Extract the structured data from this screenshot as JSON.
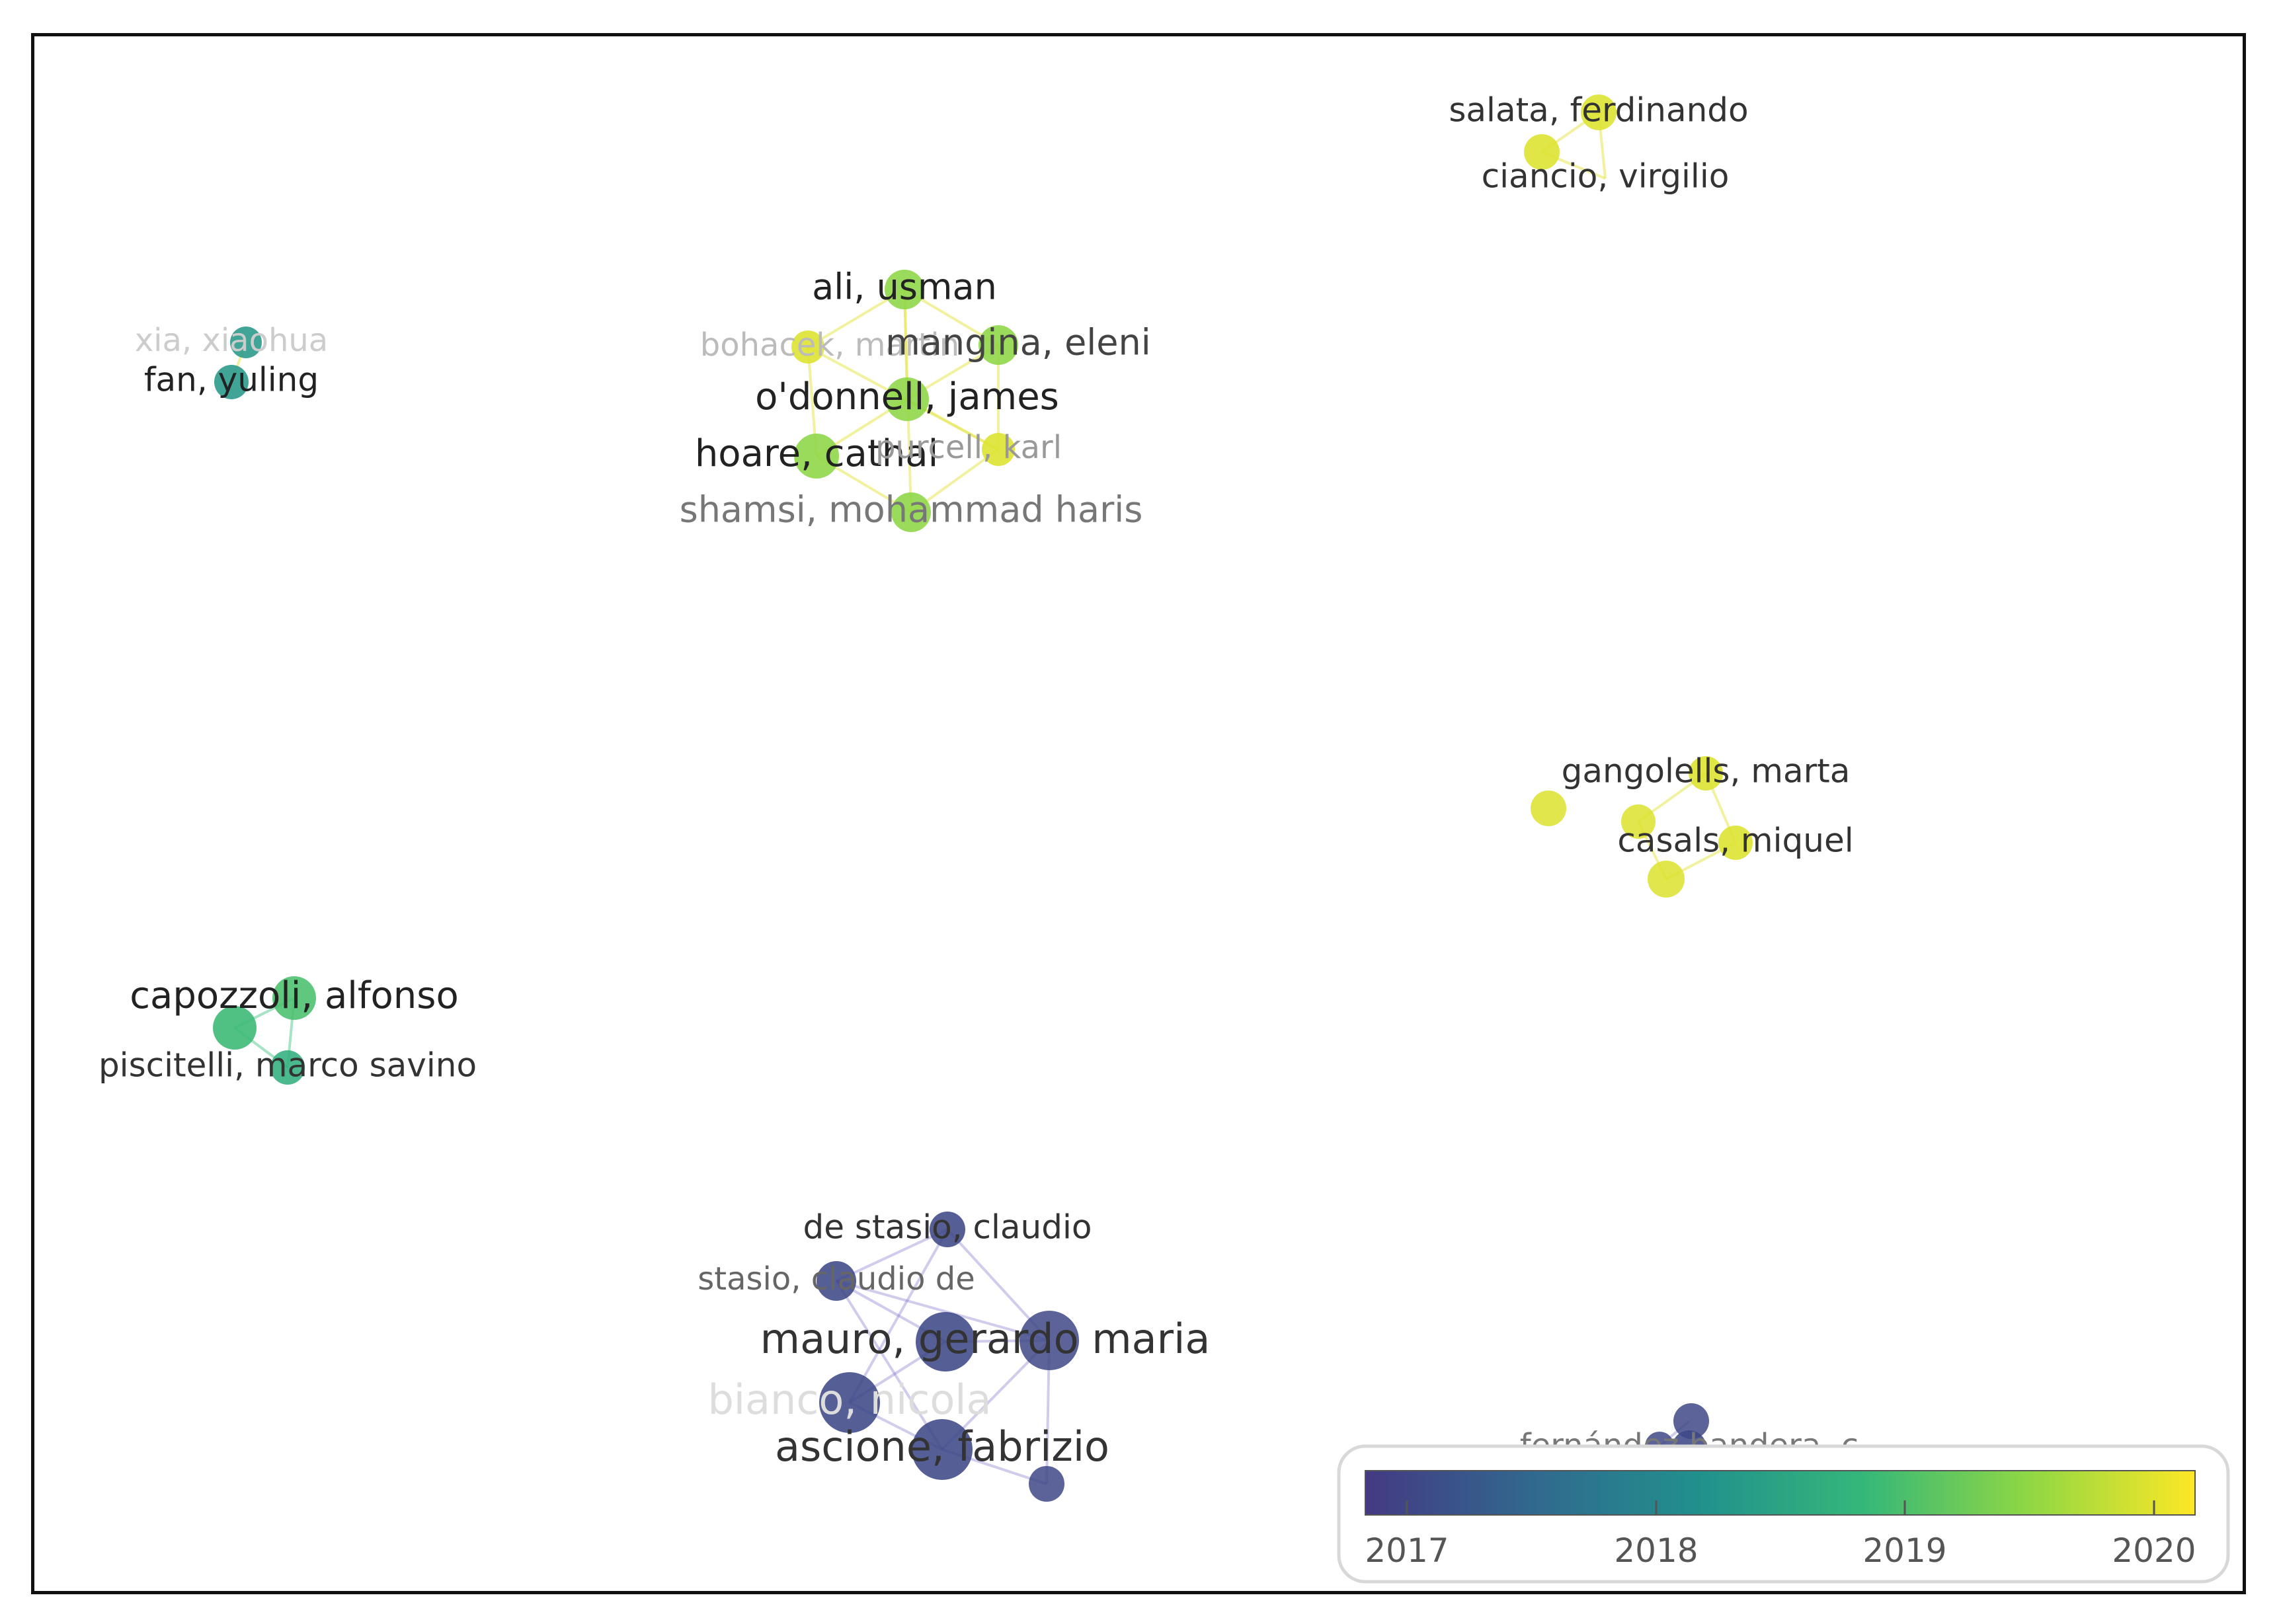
{
  "legend": {
    "ticks": [
      "2017",
      "2018",
      "2019",
      "2020"
    ],
    "colors": [
      "#443a83",
      "#31688e",
      "#21908d",
      "#35b779",
      "#8fd744",
      "#fde725"
    ]
  },
  "clusters": [
    {
      "name": "top-right-cluster",
      "authors": [
        {
          "label": "salata, ferdinando",
          "year": 2020
        },
        {
          "label": "ciancio, virgilio",
          "year": 2020
        }
      ]
    },
    {
      "name": "irish-cluster",
      "authors": [
        {
          "label": "ali, usman",
          "year": 2019.5
        },
        {
          "label": "bohacek, martin",
          "year": 2020
        },
        {
          "label": "mangina, eleni",
          "year": 2019.5
        },
        {
          "label": "o'donnell, james",
          "year": 2019.5
        },
        {
          "label": "hoare, cathal",
          "year": 2019.5
        },
        {
          "label": "purcell, karl",
          "year": 2020
        },
        {
          "label": "shamsi, mohammad haris",
          "year": 2019.5
        }
      ]
    },
    {
      "name": "chinese-cluster",
      "authors": [
        {
          "label": "xia, xiaohua",
          "year": 2018.3
        },
        {
          "label": "fan, yuling",
          "year": 2018.3
        }
      ]
    },
    {
      "name": "spanish-cluster",
      "authors": [
        {
          "label": "gangolells, marta",
          "year": 2020
        },
        {
          "label": "casals, miquel",
          "year": 2020
        }
      ]
    },
    {
      "name": "italian-cluster",
      "authors": [
        {
          "label": "capozzoli, alfonso",
          "year": 2019
        },
        {
          "label": "piscitelli, marco savino",
          "year": 2018.7
        }
      ]
    },
    {
      "name": "naples-cluster",
      "authors": [
        {
          "label": "de stasio, claudio",
          "year": 2017
        },
        {
          "label": "stasio, claudio de",
          "year": 2017
        },
        {
          "label": "mauro, gerardo maria",
          "year": 2017
        },
        {
          "label": "bianco, nicola",
          "year": 2017
        },
        {
          "label": "ascione, fabrizio",
          "year": 2017
        }
      ]
    },
    {
      "name": "bottom-right-cluster",
      "authors": [
        {
          "label": "fernández bandera, c",
          "year": 2017
        }
      ]
    }
  ]
}
